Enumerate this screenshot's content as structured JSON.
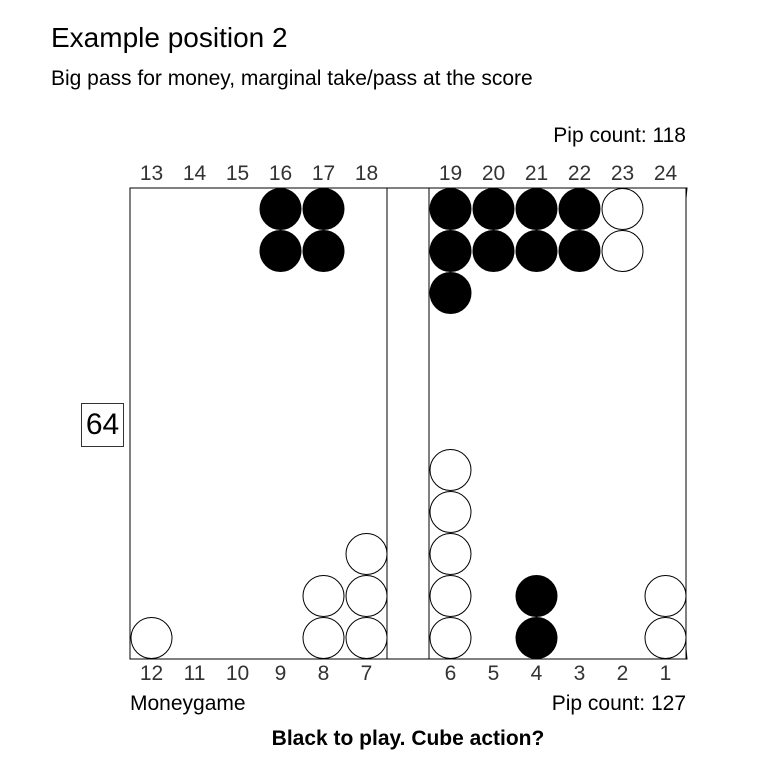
{
  "header": {
    "title": "Example position 2",
    "subtitle": "Big pass for money, marginal take/pass at the score"
  },
  "pip_counts": {
    "top": "Pip count: 118",
    "bottom": "Pip count: 127"
  },
  "cube": {
    "value": "64"
  },
  "match": {
    "label": "Moneygame"
  },
  "prompt": "Black to play. Cube action?",
  "point_numbers": {
    "top": [
      "13",
      "14",
      "15",
      "16",
      "17",
      "18",
      "19",
      "20",
      "21",
      "22",
      "23",
      "24"
    ],
    "bottom": [
      "12",
      "11",
      "10",
      "9",
      "8",
      "7",
      "6",
      "5",
      "4",
      "3",
      "2",
      "1"
    ]
  },
  "colors": {
    "black_checker": "#000000",
    "white_checker": "#ffffff",
    "point_dark": "#cccccc",
    "point_light": "#ffffff",
    "board_line": "#000000"
  },
  "position": {
    "black": {
      "16": 2,
      "17": 2,
      "19": 3,
      "20": 2,
      "21": 2,
      "22": 2,
      "4": 2
    },
    "white": {
      "23": 2,
      "12": 1,
      "8": 2,
      "7": 3,
      "6": 5,
      "1": 2
    }
  }
}
